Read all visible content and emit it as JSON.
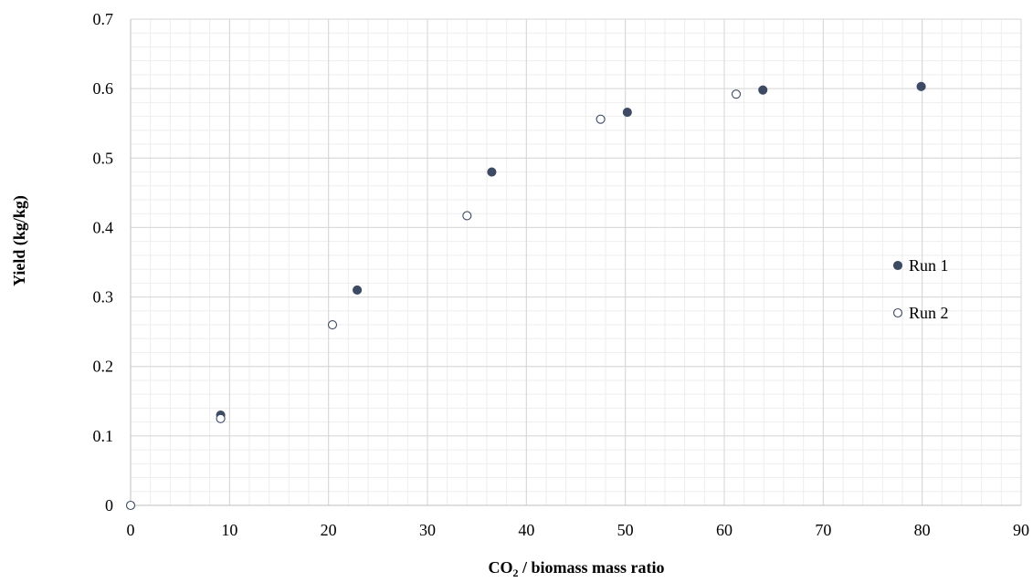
{
  "chart_data": {
    "type": "scatter",
    "xlabel_main": "CO",
    "xlabel_sub": "2",
    "xlabel_rest": " / biomass mass ratio",
    "ylabel": "Yield (kg/kg)",
    "xlim": [
      0,
      90
    ],
    "ylim": [
      0,
      0.7
    ],
    "x_ticks": [
      0,
      10,
      20,
      30,
      40,
      50,
      60,
      70,
      80,
      90
    ],
    "y_ticks": [
      0,
      0.1,
      0.2,
      0.3,
      0.4,
      0.5,
      0.6,
      0.7
    ],
    "x_tick_labels": [
      "0",
      "10",
      "20",
      "30",
      "40",
      "50",
      "60",
      "70",
      "80",
      "90"
    ],
    "y_tick_labels": [
      "0",
      "0.1",
      "0.2",
      "0.3",
      "0.4",
      "0.5",
      "0.6",
      "0.7"
    ],
    "major_grid": true,
    "minor_grid": true,
    "legend_position": "right",
    "series": [
      {
        "name": "Run 1",
        "marker": "filled-circle",
        "color": "#3d4a63",
        "points": [
          {
            "x": 9.1,
            "y": 0.13
          },
          {
            "x": 22.9,
            "y": 0.31
          },
          {
            "x": 36.5,
            "y": 0.48
          },
          {
            "x": 50.2,
            "y": 0.566
          },
          {
            "x": 63.9,
            "y": 0.598
          },
          {
            "x": 79.9,
            "y": 0.603
          }
        ]
      },
      {
        "name": "Run 2",
        "marker": "open-circle",
        "color": "#3d4a63",
        "points": [
          {
            "x": 0,
            "y": 0
          },
          {
            "x": 9.1,
            "y": 0.125
          },
          {
            "x": 20.4,
            "y": 0.26
          },
          {
            "x": 34.0,
            "y": 0.417
          },
          {
            "x": 47.5,
            "y": 0.556
          },
          {
            "x": 61.2,
            "y": 0.592
          }
        ]
      }
    ]
  }
}
